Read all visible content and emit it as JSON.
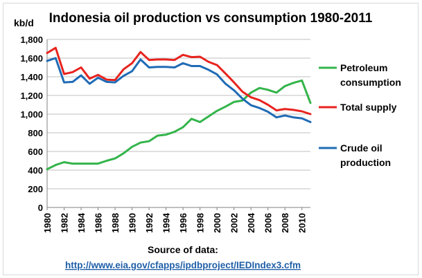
{
  "chart_data": {
    "type": "line",
    "title": "Indonesia oil production vs consumption 1980-2011",
    "ylabel": "kb/d",
    "ylim": [
      0,
      1800
    ],
    "yticks": [
      "0",
      "200",
      "400",
      "600",
      "800",
      "1,000",
      "1,200",
      "1,400",
      "1,600",
      "1,800"
    ],
    "xlim": [
      1980,
      2011
    ],
    "xticks": [
      "1980",
      "1982",
      "1984",
      "1986",
      "1988",
      "1990",
      "1992",
      "1994",
      "1996",
      "1998",
      "2000",
      "2002",
      "2004",
      "2006",
      "2008",
      "2010"
    ],
    "grid": "horizontal",
    "legend_position": "right",
    "x": [
      1980,
      1981,
      1982,
      1983,
      1984,
      1985,
      1986,
      1987,
      1988,
      1989,
      1990,
      1991,
      1992,
      1993,
      1994,
      1995,
      1996,
      1997,
      1998,
      1999,
      2000,
      2001,
      2002,
      2003,
      2004,
      2005,
      2006,
      2007,
      2008,
      2009,
      2010,
      2011
    ],
    "series": [
      {
        "name": "Petroleum consumption",
        "color": "#33b44a",
        "values": [
          410,
          455,
          485,
          470,
          470,
          470,
          470,
          500,
          525,
          580,
          650,
          695,
          710,
          770,
          780,
          810,
          860,
          950,
          915,
          975,
          1035,
          1080,
          1130,
          1145,
          1230,
          1280,
          1260,
          1230,
          1300,
          1335,
          1360,
          1120
        ]
      },
      {
        "name": "Total supply",
        "color": "#e8231e",
        "values": [
          1655,
          1710,
          1430,
          1450,
          1500,
          1380,
          1420,
          1370,
          1365,
          1480,
          1545,
          1665,
          1580,
          1585,
          1585,
          1580,
          1635,
          1610,
          1615,
          1560,
          1525,
          1435,
          1340,
          1240,
          1180,
          1150,
          1100,
          1040,
          1055,
          1045,
          1030,
          1000
        ]
      },
      {
        "name": "Crude oil production",
        "color": "#1f6bb5",
        "values": [
          1570,
          1600,
          1340,
          1345,
          1415,
          1325,
          1390,
          1345,
          1340,
          1410,
          1460,
          1585,
          1500,
          1505,
          1505,
          1500,
          1545,
          1515,
          1515,
          1475,
          1425,
          1325,
          1255,
          1165,
          1095,
          1065,
          1025,
          965,
          985,
          965,
          955,
          915
        ]
      }
    ]
  },
  "source_label": "Source of data:",
  "source_url": "http://www.eia.gov/cfapps/ipdbproject/IEDIndex3.cfm"
}
